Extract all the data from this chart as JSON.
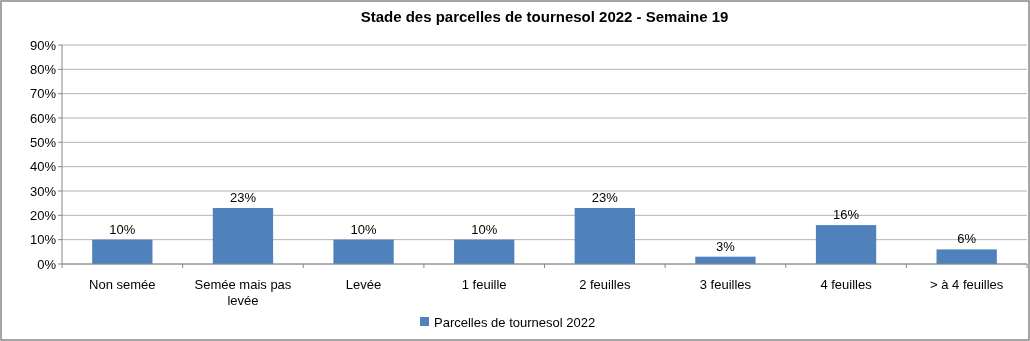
{
  "chart_data": {
    "type": "bar",
    "title": "Stade des parcelles de tournesol 2022 -  Semaine 19",
    "categories": [
      "Non semée",
      "Semée mais pas levée",
      "Levée",
      "1 feuille",
      "2 feuilles",
      "3 feuilles",
      "4 feuilles",
      "> à 4 feuilles"
    ],
    "series": [
      {
        "name": "Parcelles de tournesol 2022",
        "color": "#4f81bd",
        "values": [
          10,
          23,
          10,
          10,
          23,
          3,
          16,
          6
        ],
        "value_labels": [
          "10%",
          "23%",
          "10%",
          "10%",
          "23%",
          "3%",
          "16%",
          "6%"
        ]
      }
    ],
    "ylim": [
      0,
      90
    ],
    "yticks": [
      {
        "value": 0,
        "label": "0%"
      },
      {
        "value": 10,
        "label": "10%"
      },
      {
        "value": 20,
        "label": "20%"
      },
      {
        "value": 30,
        "label": "30%"
      },
      {
        "value": 40,
        "label": "40%"
      },
      {
        "value": 50,
        "label": "50%"
      },
      {
        "value": 60,
        "label": "60%"
      },
      {
        "value": 70,
        "label": "70%"
      },
      {
        "value": 80,
        "label": "80%"
      },
      {
        "value": 90,
        "label": "90%"
      }
    ],
    "grid": "y",
    "legend": "bottom"
  }
}
